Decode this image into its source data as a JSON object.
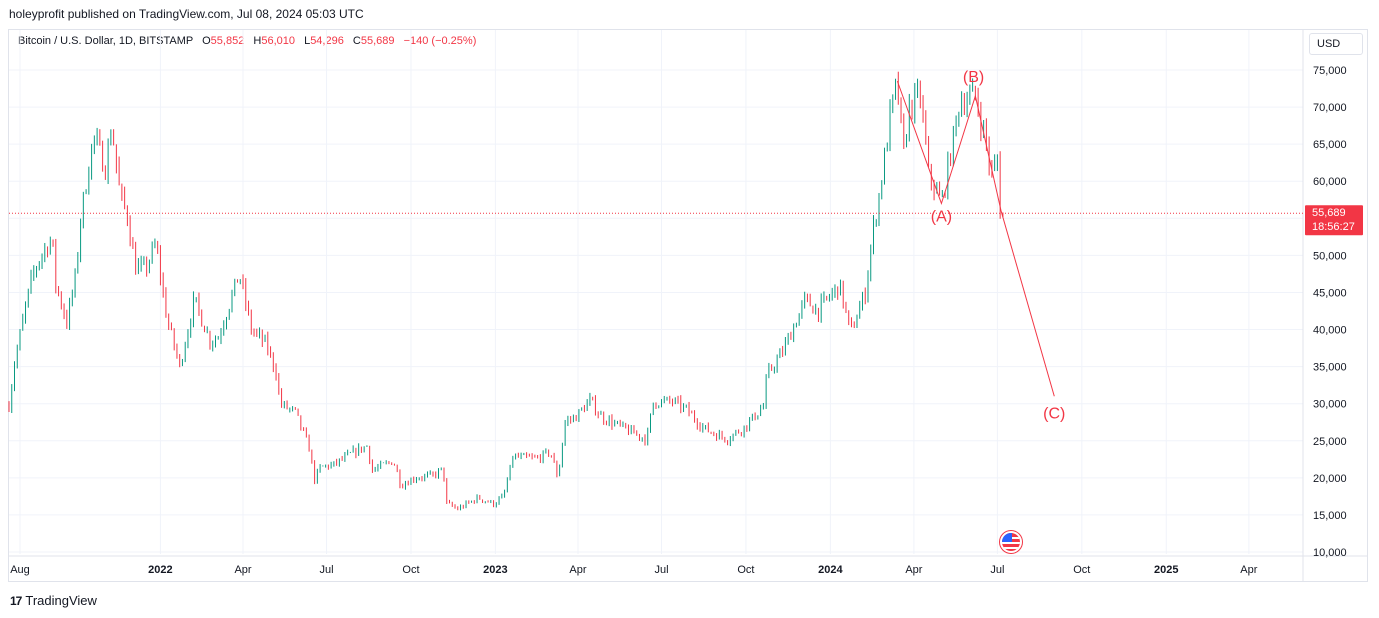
{
  "header": {
    "published_by": "holeyprofit published on TradingView.com, Jul 08, 2024 05:03 UTC"
  },
  "legend": {
    "symbol": "Bitcoin / U.S. Dollar, 1D, BITSTAMP",
    "o_label": "O",
    "o_value": "55,852",
    "h_label": "H",
    "h_value": "56,010",
    "l_label": "L",
    "l_value": "54,296",
    "c_label": "C",
    "c_value": "55,689",
    "change": "−140 (−0.25%)"
  },
  "currency_button": "USD",
  "price_tag": {
    "price": "55,689",
    "countdown": "18:56:27"
  },
  "footer": {
    "brand": "TradingView",
    "logo": "17"
  },
  "colors": {
    "up": "#089981",
    "down": "#f23645",
    "annotation": "#f23645",
    "grid": "#f0f3fa",
    "axis_text": "#131722"
  },
  "chart_data": {
    "type": "line",
    "series": [
      {
        "name": "BTC/USD",
        "x": [
          "2021-07-20",
          "2021-07-26",
          "2021-08-07",
          "2021-08-14",
          "2021-08-22",
          "2021-09-05",
          "2021-09-08",
          "2021-09-21",
          "2021-10-01",
          "2021-10-06",
          "2021-10-20",
          "2021-11-02",
          "2021-11-09",
          "2021-11-18",
          "2021-11-27",
          "2021-12-04",
          "2021-12-15",
          "2021-12-27",
          "2022-01-08",
          "2022-01-22",
          "2022-02-07",
          "2022-02-24",
          "2022-03-05",
          "2022-03-28",
          "2022-04-10",
          "2022-04-26",
          "2022-05-08",
          "2022-05-11",
          "2022-05-28",
          "2022-06-12",
          "2022-06-18",
          "2022-06-25",
          "2022-07-08",
          "2022-07-30",
          "2022-08-14",
          "2022-08-20",
          "2022-09-12",
          "2022-09-20",
          "2022-10-05",
          "2022-10-25",
          "2022-11-05",
          "2022-11-09",
          "2022-11-21",
          "2022-12-13",
          "2022-12-30",
          "2023-01-10",
          "2023-01-20",
          "2023-02-15",
          "2023-03-02",
          "2023-03-10",
          "2023-03-18",
          "2023-03-30",
          "2023-04-14",
          "2023-04-26",
          "2023-05-15",
          "2023-06-15",
          "2023-06-22",
          "2023-07-13",
          "2023-07-28",
          "2023-08-17",
          "2023-09-01",
          "2023-09-11",
          "2023-10-01",
          "2023-10-20",
          "2023-10-24",
          "2023-11-09",
          "2023-12-05",
          "2023-12-18",
          "2024-01-11",
          "2024-01-23",
          "2024-02-08",
          "2024-02-15",
          "2024-02-28",
          "2024-03-05",
          "2024-03-14",
          "2024-03-20",
          "2024-03-27",
          "2024-04-08",
          "2024-04-17",
          "2024-05-01",
          "2024-05-15",
          "2024-05-21",
          "2024-06-07",
          "2024-06-20",
          "2024-06-24",
          "2024-07-01",
          "2024-07-05",
          "2024-07-08"
        ],
        "y": [
          29800,
          35500,
          43000,
          47000,
          49500,
          52500,
          46500,
          41000,
          47500,
          55000,
          66000,
          62000,
          67500,
          58000,
          55000,
          48500,
          48000,
          51500,
          41500,
          35000,
          44000,
          38500,
          39000,
          47500,
          40000,
          38000,
          34000,
          30000,
          28800,
          24000,
          19800,
          21500,
          21700,
          23400,
          24300,
          21000,
          22300,
          19000,
          20000,
          20300,
          21200,
          16500,
          15800,
          17300,
          16500,
          17500,
          22800,
          22600,
          23500,
          20000,
          27500,
          28300,
          30400,
          28300,
          27000,
          25200,
          30200,
          30300,
          29200,
          26600,
          25700,
          25300,
          27000,
          29700,
          33900,
          36800,
          44000,
          42500,
          46000,
          39500,
          45000,
          52000,
          62000,
          68000,
          73500,
          63000,
          70000,
          71500,
          61000,
          57000,
          66500,
          71000,
          71500,
          64500,
          60500,
          63000,
          54000,
          55689
        ]
      }
    ],
    "annotations": [
      {
        "text": "(A)",
        "date": "2024-05-01",
        "price": 57000
      },
      {
        "text": "(B)",
        "date": "2024-06-05",
        "price": 71500
      },
      {
        "text": "(C)",
        "date": "2024-09-01",
        "price": 31000
      }
    ],
    "projection_x": [
      "2024-03-14",
      "2024-05-01",
      "2024-06-07",
      "2024-07-05",
      "2024-09-01"
    ],
    "projection_y": [
      73500,
      57000,
      71500,
      56000,
      31000
    ],
    "x_ticks": [
      "Aug",
      "2022",
      "Apr",
      "Jul",
      "Oct",
      "2023",
      "Apr",
      "Jul",
      "Oct",
      "2024",
      "Apr",
      "Jul",
      "Oct",
      "2025",
      "Apr"
    ],
    "x_tick_dates": [
      "2021-08-01",
      "2022-01-01",
      "2022-04-01",
      "2022-07-01",
      "2022-10-01",
      "2023-01-01",
      "2023-04-01",
      "2023-07-01",
      "2023-10-01",
      "2024-01-01",
      "2024-04-01",
      "2024-07-01",
      "2024-10-01",
      "2025-01-01",
      "2025-04-01"
    ],
    "y_ticks": [
      "75,000",
      "70,000",
      "65,000",
      "60,000",
      "55,000",
      "50,000",
      "45,000",
      "40,000",
      "35,000",
      "30,000",
      "25,000",
      "20,000",
      "15,000",
      "10,000"
    ],
    "y_tick_values": [
      75000,
      70000,
      65000,
      60000,
      55000,
      50000,
      45000,
      40000,
      35000,
      30000,
      25000,
      20000,
      15000,
      10000
    ],
    "ylim": [
      10000,
      75000
    ],
    "xlim": [
      "2021-07-20",
      "2025-05-30"
    ],
    "last_price": 55689,
    "grid": true
  }
}
